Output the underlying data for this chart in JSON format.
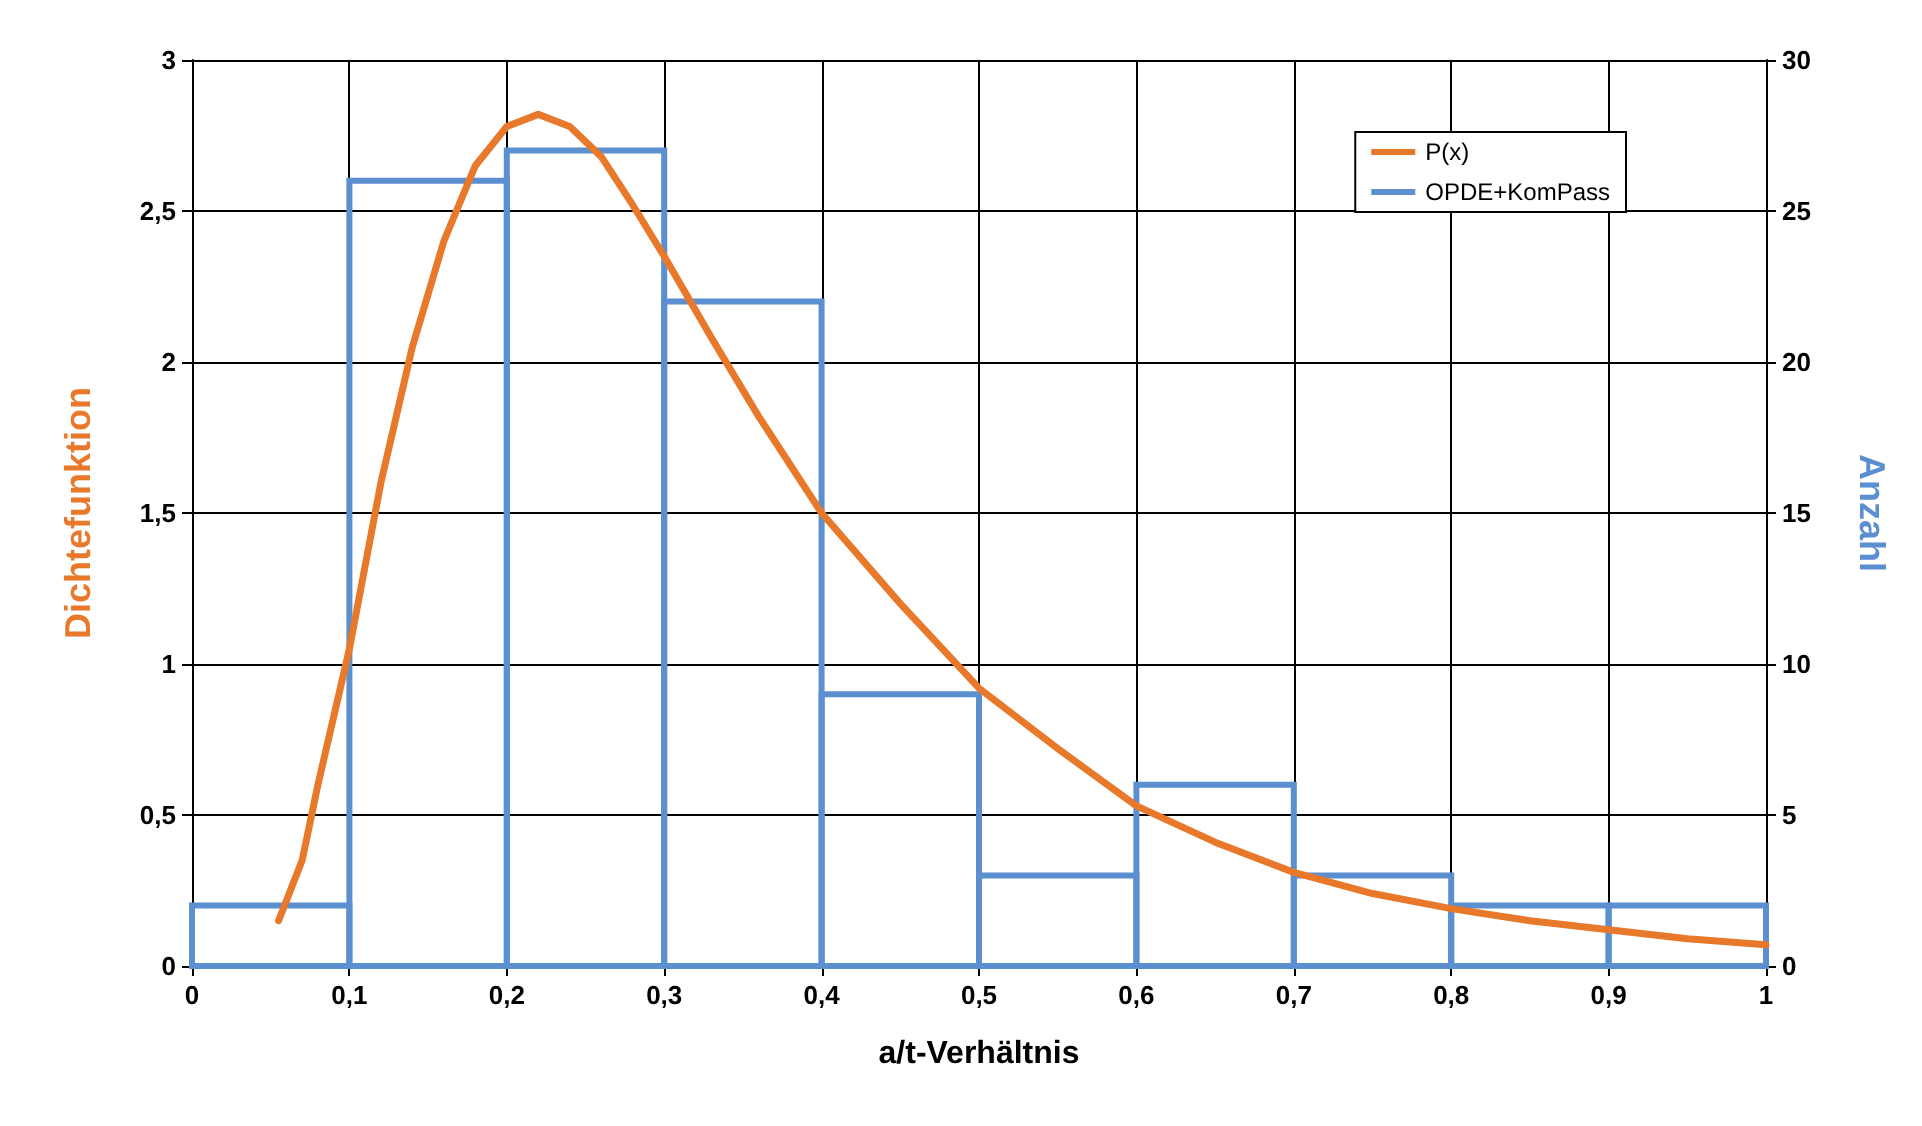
{
  "chart_data": {
    "type": "line",
    "xlabel": "a/t-Verhältnis",
    "ylabel": "Dichtefunktion",
    "y2label": "Anzahl",
    "xlim": [
      0,
      1
    ],
    "xticks": [
      0,
      {
        "value": 0.1,
        "label": "0,1"
      },
      {
        "value": 0.2,
        "label": "0,2"
      },
      {
        "value": 0.3,
        "label": "0,3"
      },
      {
        "value": 0.4,
        "label": "0,4"
      },
      {
        "value": 0.5,
        "label": "0,5"
      },
      {
        "value": 0.6,
        "label": "0,6"
      },
      {
        "value": 0.7,
        "label": "0,7"
      },
      {
        "value": 0.8,
        "label": "0,8"
      },
      {
        "value": 0.9,
        "label": "0,9"
      },
      1
    ],
    "ylim": [
      0,
      3
    ],
    "yticks": [
      0,
      {
        "value": 0.5,
        "label": "0,5"
      },
      1,
      {
        "value": 1.5,
        "label": "1,5"
      },
      2,
      {
        "value": 2.5,
        "label": "2,5"
      },
      3
    ],
    "y2lim": [
      0,
      30
    ],
    "y2ticks": [
      0,
      5,
      10,
      15,
      20,
      25,
      30
    ],
    "grid": true,
    "legend": "top right",
    "marker": "none",
    "series": [
      {
        "name": "P(x)",
        "color": "#e8782a",
        "x": [
          0.055,
          0.07,
          0.08,
          0.1,
          0.12,
          0.14,
          0.16,
          0.18,
          0.2,
          0.22,
          0.24,
          0.26,
          0.28,
          0.3,
          0.33,
          0.36,
          0.4,
          0.45,
          0.5,
          0.55,
          0.6,
          0.65,
          0.7,
          0.75,
          0.8,
          0.85,
          0.9,
          0.95,
          1.0
        ],
        "values": [
          0.15,
          0.35,
          0.6,
          1.05,
          1.6,
          2.05,
          2.4,
          2.65,
          2.78,
          2.82,
          2.78,
          2.68,
          2.52,
          2.35,
          2.08,
          1.82,
          1.5,
          1.2,
          0.92,
          0.72,
          0.53,
          0.41,
          0.31,
          0.24,
          0.19,
          0.15,
          0.12,
          0.09,
          0.07
        ]
      },
      {
        "name": "OPDE+KomPass",
        "type": "histogram",
        "axis": "y2",
        "color": "#5b8fd0",
        "bins": [
          0,
          0.1,
          0.2,
          0.3,
          0.4,
          0.5,
          0.6,
          0.7,
          0.8,
          0.9,
          1.0
        ],
        "values": [
          2,
          26,
          27,
          22,
          9,
          3,
          6,
          3,
          2,
          2
        ]
      }
    ]
  }
}
